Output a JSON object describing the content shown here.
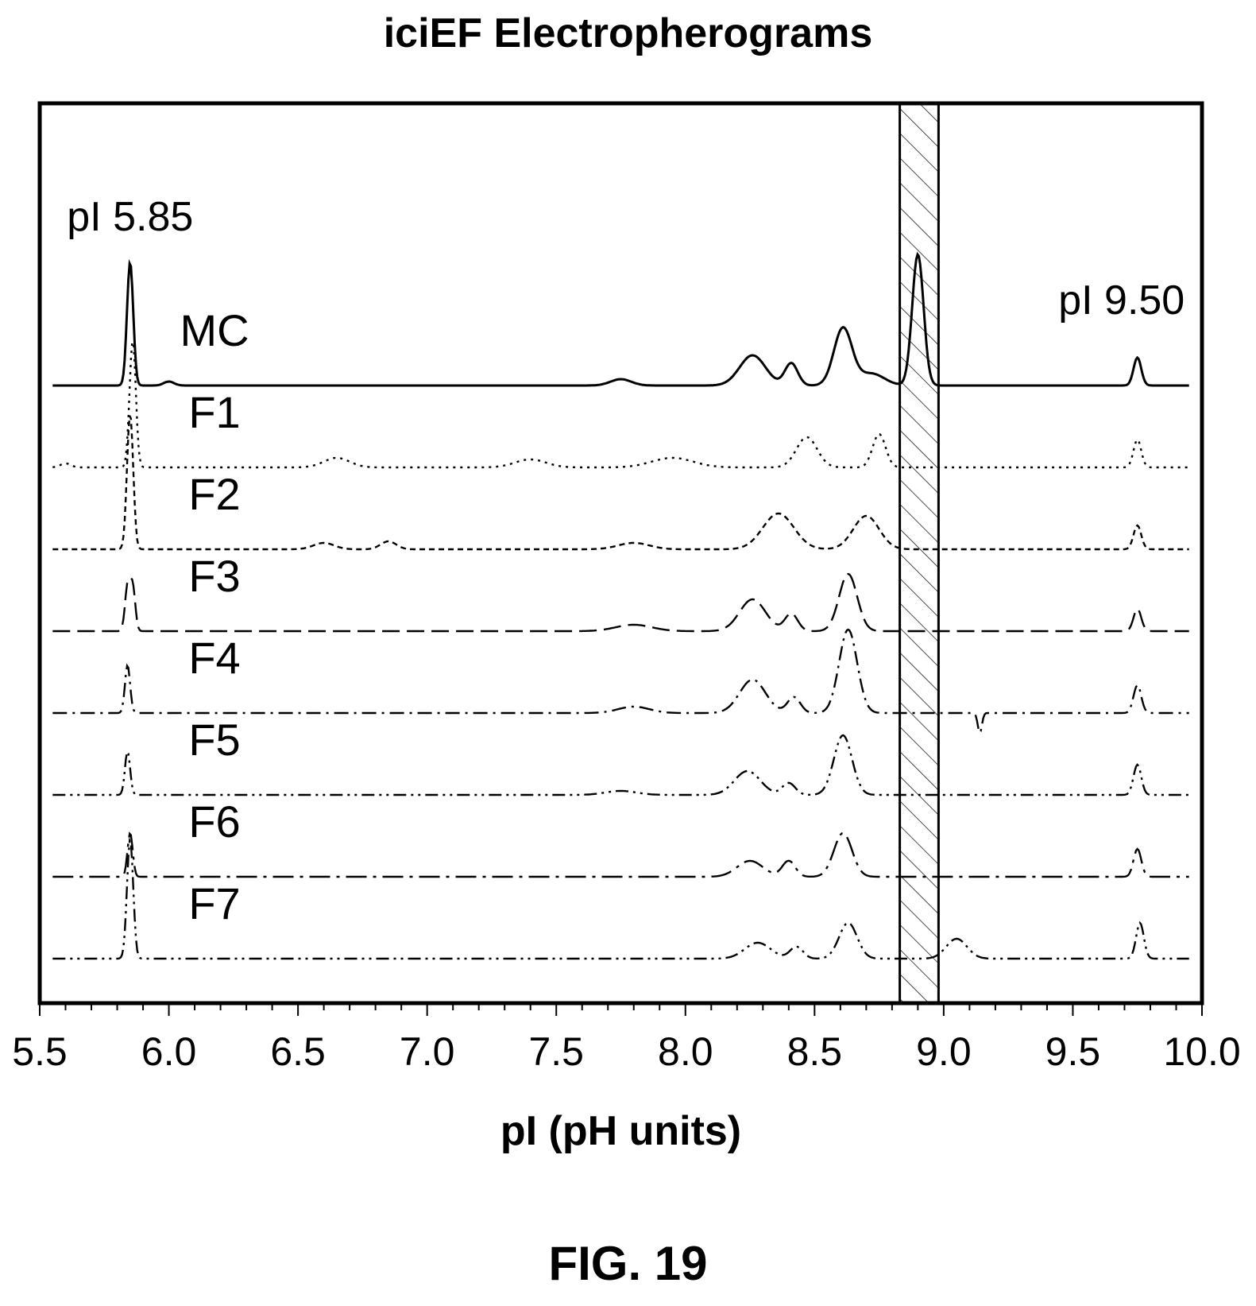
{
  "chart_data": {
    "type": "line",
    "title": "iciEF Electropherograms",
    "xlabel": "pI (pH units)",
    "ylabel": "",
    "xlim": [
      5.5,
      10.0
    ],
    "xticks": [
      "5.5",
      "6.0",
      "6.5",
      "7.0",
      "7.5",
      "8.0",
      "8.5",
      "9.0",
      "9.5",
      "10.0"
    ],
    "grid": false,
    "shaded_region": {
      "x_start": 8.83,
      "x_end": 8.98,
      "pattern": "diagonal-hatch"
    },
    "annotations": [
      {
        "text": "pI 5.85",
        "x": 5.85
      },
      {
        "text": "pI 9.50",
        "x": 9.75
      }
    ],
    "series": [
      {
        "name": "MC",
        "dash": "solid",
        "baseline": 0,
        "peaks": [
          [
            5.85,
            1.55,
            0.012
          ],
          [
            6.0,
            0.05,
            0.02
          ],
          [
            7.75,
            0.08,
            0.04
          ],
          [
            8.26,
            0.38,
            0.05
          ],
          [
            8.41,
            0.28,
            0.025
          ],
          [
            8.61,
            0.72,
            0.035
          ],
          [
            8.72,
            0.15,
            0.05
          ],
          [
            8.9,
            1.65,
            0.022
          ],
          [
            9.75,
            0.35,
            0.015
          ]
        ]
      },
      {
        "name": "F1",
        "dash": "dotted",
        "baseline": 1,
        "peaks": [
          [
            5.6,
            0.05,
            0.02
          ],
          [
            5.86,
            1.6,
            0.012
          ],
          [
            6.65,
            0.12,
            0.05
          ],
          [
            7.4,
            0.1,
            0.06
          ],
          [
            7.95,
            0.12,
            0.08
          ],
          [
            8.47,
            0.38,
            0.04
          ],
          [
            8.75,
            0.42,
            0.025
          ],
          [
            9.75,
            0.35,
            0.015
          ]
        ]
      },
      {
        "name": "F2",
        "dash": "short-dash",
        "baseline": 2,
        "peaks": [
          [
            5.85,
            1.7,
            0.012
          ],
          [
            6.6,
            0.08,
            0.04
          ],
          [
            6.85,
            0.1,
            0.03
          ],
          [
            7.8,
            0.08,
            0.06
          ],
          [
            8.36,
            0.45,
            0.06
          ],
          [
            8.7,
            0.42,
            0.05
          ],
          [
            9.75,
            0.3,
            0.015
          ]
        ]
      },
      {
        "name": "F3",
        "dash": "long-dash",
        "baseline": 3,
        "peaks": [
          [
            5.84,
            0.55,
            0.01
          ],
          [
            5.86,
            0.55,
            0.01
          ],
          [
            7.8,
            0.08,
            0.07
          ],
          [
            8.26,
            0.4,
            0.05
          ],
          [
            8.41,
            0.22,
            0.025
          ],
          [
            8.63,
            0.72,
            0.035
          ],
          [
            9.75,
            0.28,
            0.015
          ]
        ]
      },
      {
        "name": "F4",
        "dash": "dash-dot",
        "baseline": 4,
        "peaks": [
          [
            5.84,
            0.6,
            0.01
          ],
          [
            7.8,
            0.08,
            0.06
          ],
          [
            8.26,
            0.42,
            0.05
          ],
          [
            8.42,
            0.2,
            0.025
          ],
          [
            8.63,
            1.05,
            0.035
          ],
          [
            9.14,
            -0.25,
            0.008
          ],
          [
            9.75,
            0.35,
            0.015
          ]
        ]
      },
      {
        "name": "F5",
        "dash": "dash-dot-dot",
        "baseline": 5,
        "peaks": [
          [
            5.84,
            0.55,
            0.01
          ],
          [
            7.75,
            0.05,
            0.06
          ],
          [
            8.24,
            0.3,
            0.05
          ],
          [
            8.4,
            0.15,
            0.025
          ],
          [
            8.61,
            0.75,
            0.035
          ],
          [
            9.75,
            0.38,
            0.015
          ]
        ]
      },
      {
        "name": "F6",
        "dash": "long-dash-dot",
        "baseline": 6,
        "peaks": [
          [
            5.85,
            0.55,
            0.01
          ],
          [
            8.25,
            0.2,
            0.05
          ],
          [
            8.4,
            0.2,
            0.025
          ],
          [
            8.61,
            0.55,
            0.035
          ],
          [
            9.75,
            0.35,
            0.015
          ]
        ]
      },
      {
        "name": "F7",
        "dash": "dash-dot-dot",
        "baseline": 7,
        "peaks": [
          [
            5.85,
            1.5,
            0.012
          ],
          [
            8.28,
            0.2,
            0.05
          ],
          [
            8.43,
            0.15,
            0.025
          ],
          [
            8.63,
            0.45,
            0.035
          ],
          [
            9.05,
            0.25,
            0.04
          ],
          [
            9.76,
            0.45,
            0.015
          ]
        ]
      }
    ]
  }
}
